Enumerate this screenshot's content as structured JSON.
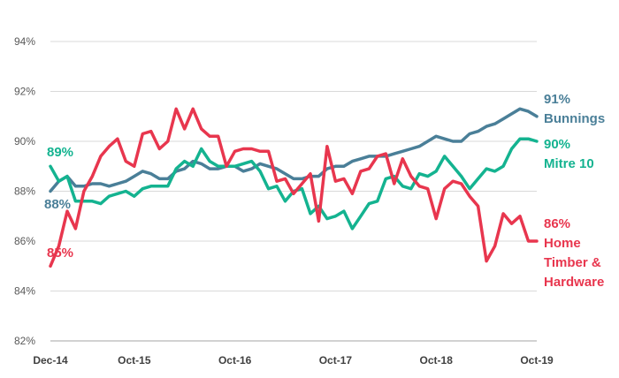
{
  "chart_data": {
    "type": "line",
    "title": "",
    "xlabel": "",
    "ylabel": "",
    "y_unit": "%",
    "ylim": [
      82,
      94
    ],
    "yticks": [
      82,
      84,
      86,
      88,
      90,
      92,
      94
    ],
    "ytick_labels": [
      "82%",
      "84%",
      "86%",
      "88%",
      "90%",
      "92%",
      "94%"
    ],
    "grid": true,
    "legend": "none (series labelled directly at right end of lines)",
    "xtick_labels": [
      {
        "label": "Dec-14",
        "index": 0
      },
      {
        "label": "Oct-15",
        "index": 10
      },
      {
        "label": "Oct-16",
        "index": 22
      },
      {
        "label": "Oct-17",
        "index": 34
      },
      {
        "label": "Oct-18",
        "index": 46
      },
      {
        "label": "Oct-19",
        "index": 58
      }
    ],
    "x": [
      "Dec-14",
      "Jan-15",
      "Feb-15",
      "Mar-15",
      "Apr-15",
      "May-15",
      "Jun-15",
      "Jul-15",
      "Aug-15",
      "Sep-15",
      "Oct-15",
      "Nov-15",
      "Dec-15",
      "Jan-16",
      "Feb-16",
      "Mar-16",
      "Apr-16",
      "May-16",
      "Jun-16",
      "Jul-16",
      "Aug-16",
      "Sep-16",
      "Oct-16",
      "Nov-16",
      "Dec-16",
      "Jan-17",
      "Feb-17",
      "Mar-17",
      "Apr-17",
      "May-17",
      "Jun-17",
      "Jul-17",
      "Aug-17",
      "Sep-17",
      "Oct-17",
      "Nov-17",
      "Dec-17",
      "Jan-18",
      "Feb-18",
      "Mar-18",
      "Apr-18",
      "May-18",
      "Jun-18",
      "Jul-18",
      "Aug-18",
      "Sep-18",
      "Oct-18",
      "Nov-18",
      "Dec-18",
      "Jan-19",
      "Feb-19",
      "Mar-19",
      "Apr-19",
      "May-19",
      "Jun-19",
      "Jul-19",
      "Aug-19",
      "Sep-19",
      "Oct-19"
    ],
    "series": [
      {
        "name": "Bunnings",
        "color": "#4a7f98",
        "start_label": "88%",
        "end_label": "91%",
        "values": [
          88.0,
          88.4,
          88.6,
          88.2,
          88.2,
          88.3,
          88.3,
          88.2,
          88.3,
          88.4,
          88.6,
          88.8,
          88.7,
          88.5,
          88.5,
          88.8,
          88.9,
          89.2,
          89.1,
          88.9,
          88.9,
          89.0,
          89.0,
          88.8,
          88.9,
          89.1,
          89.0,
          88.9,
          88.7,
          88.5,
          88.5,
          88.6,
          88.6,
          88.9,
          89.0,
          89.0,
          89.2,
          89.3,
          89.4,
          89.4,
          89.4,
          89.5,
          89.6,
          89.7,
          89.8,
          90.0,
          90.2,
          90.1,
          90.0,
          90.0,
          90.3,
          90.4,
          90.6,
          90.7,
          90.9,
          91.1,
          91.3,
          91.2,
          91.0
        ]
      },
      {
        "name": "Mitre 10",
        "color": "#14b390",
        "start_label": "89%",
        "end_label": "90%",
        "values": [
          89.0,
          88.4,
          88.6,
          87.6,
          87.6,
          87.6,
          87.5,
          87.8,
          87.9,
          88.0,
          87.8,
          88.1,
          88.2,
          88.2,
          88.2,
          88.9,
          89.2,
          89.0,
          89.7,
          89.2,
          89.0,
          89.0,
          89.0,
          89.1,
          89.2,
          88.8,
          88.1,
          88.2,
          87.6,
          88.0,
          88.1,
          87.1,
          87.4,
          86.9,
          87.0,
          87.2,
          86.5,
          87.0,
          87.5,
          87.6,
          88.5,
          88.6,
          88.2,
          88.1,
          88.7,
          88.6,
          88.8,
          89.4,
          89.0,
          88.6,
          88.1,
          88.5,
          88.9,
          88.8,
          89.0,
          89.7,
          90.1,
          90.1,
          90.0
        ]
      },
      {
        "name": "Home Timber & Hardware",
        "color": "#e8364e",
        "start_label": "85%",
        "end_label": "86%",
        "values": [
          85.0,
          85.8,
          87.2,
          86.5,
          88.0,
          88.6,
          89.4,
          89.8,
          90.1,
          89.2,
          89.0,
          90.3,
          90.4,
          89.7,
          90.0,
          91.3,
          90.5,
          91.3,
          90.5,
          90.2,
          90.2,
          89.0,
          89.6,
          89.7,
          89.7,
          89.6,
          89.6,
          88.4,
          88.5,
          87.9,
          88.3,
          88.7,
          86.8,
          89.8,
          88.4,
          88.5,
          87.9,
          88.8,
          88.9,
          89.4,
          89.5,
          88.3,
          89.3,
          88.6,
          88.2,
          88.1,
          86.9,
          88.1,
          88.4,
          88.3,
          87.8,
          87.4,
          85.2,
          85.8,
          87.1,
          86.7,
          87.0,
          86.0,
          86.0
        ]
      }
    ]
  }
}
